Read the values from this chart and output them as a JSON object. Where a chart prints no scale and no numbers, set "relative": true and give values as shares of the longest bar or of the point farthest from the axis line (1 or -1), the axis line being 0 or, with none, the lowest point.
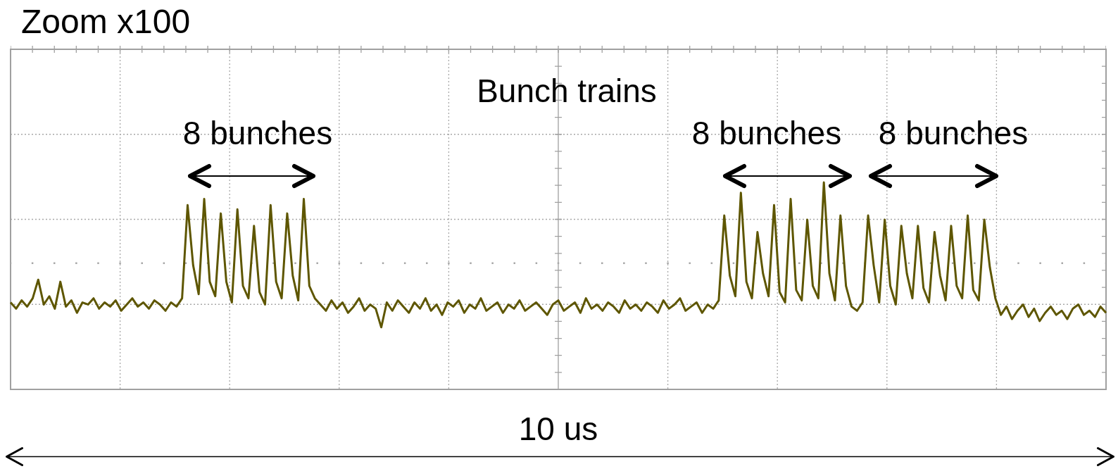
{
  "chart_data": {
    "type": "line",
    "title": "Zoom x100",
    "xlabel": "10 us",
    "relative": true,
    "grid": true,
    "annotations": [
      "Bunch trains",
      "8 bunches",
      "8 bunches",
      "8 bunches"
    ],
    "ref_lines": [
      {
        "axis": "y",
        "value": 0.61,
        "color": "#a8a8a8",
        "line_style": "dotted"
      }
    ],
    "categories": [
      null,
      null,
      null,
      null,
      null,
      null,
      null,
      null,
      null,
      null,
      null,
      null,
      null,
      null,
      null,
      null,
      null,
      null,
      null,
      null,
      null,
      null,
      null,
      null,
      null,
      null,
      null,
      null,
      null,
      null,
      null,
      null,
      null,
      null,
      null,
      null,
      null,
      null,
      null,
      null,
      null,
      null,
      null,
      null,
      null,
      null,
      null,
      null,
      null,
      null,
      null,
      null,
      null,
      null,
      null,
      null,
      null,
      null,
      null,
      null,
      null,
      null,
      null,
      null,
      null,
      null,
      null,
      null,
      null,
      null,
      null,
      null,
      null,
      null,
      null,
      null,
      null,
      null,
      null,
      null,
      null,
      null,
      null,
      null,
      null,
      null,
      null,
      null,
      null,
      null,
      null,
      null,
      null,
      null,
      null,
      null,
      null,
      null,
      null,
      null,
      null,
      null,
      null,
      null,
      null,
      null,
      null,
      null,
      null,
      null,
      null,
      null,
      null,
      null,
      null,
      null,
      null,
      null,
      null,
      null,
      null,
      null,
      null,
      null,
      null,
      null,
      null,
      null,
      null,
      null,
      null,
      null,
      null,
      null,
      null,
      null,
      null,
      null,
      null,
      null,
      null,
      null,
      null,
      null,
      null,
      null,
      null,
      null,
      null,
      null,
      null,
      null,
      null,
      null,
      null,
      null,
      null,
      null,
      null,
      null,
      null,
      null,
      null,
      null,
      null,
      null,
      null,
      null,
      null,
      null,
      null,
      null,
      null,
      null,
      null,
      null,
      null,
      null,
      null,
      null,
      null,
      null,
      null,
      null,
      null,
      null,
      null,
      null,
      null,
      null,
      null,
      null,
      null,
      null,
      null,
      null,
      null,
      null,
      null
    ],
    "series": [
      {
        "color": "#5e5600",
        "values": [
          0.42,
          0.39,
          0.43,
          0.4,
          0.44,
          0.53,
          0.41,
          0.45,
          0.39,
          0.52,
          0.4,
          0.43,
          0.37,
          0.42,
          0.41,
          0.44,
          0.39,
          0.42,
          0.4,
          0.43,
          0.38,
          0.41,
          0.44,
          0.4,
          0.42,
          0.39,
          0.43,
          0.41,
          0.38,
          0.42,
          0.4,
          0.44,
          0.89,
          0.6,
          0.46,
          0.92,
          0.52,
          0.45,
          0.85,
          0.52,
          0.42,
          0.87,
          0.5,
          0.44,
          0.79,
          0.47,
          0.41,
          0.89,
          0.52,
          0.44,
          0.85,
          0.55,
          0.43,
          0.92,
          0.5,
          0.44,
          0.41,
          0.38,
          0.43,
          0.39,
          0.42,
          0.37,
          0.4,
          0.44,
          0.38,
          0.41,
          0.39,
          0.3,
          0.42,
          0.38,
          0.43,
          0.4,
          0.37,
          0.42,
          0.39,
          0.44,
          0.38,
          0.41,
          0.36,
          0.42,
          0.4,
          0.43,
          0.37,
          0.41,
          0.39,
          0.44,
          0.38,
          0.4,
          0.42,
          0.37,
          0.41,
          0.39,
          0.43,
          0.38,
          0.4,
          0.42,
          0.39,
          0.36,
          0.41,
          0.43,
          0.38,
          0.4,
          0.42,
          0.37,
          0.44,
          0.39,
          0.41,
          0.38,
          0.42,
          0.4,
          0.37,
          0.43,
          0.39,
          0.41,
          0.38,
          0.42,
          0.4,
          0.37,
          0.43,
          0.39,
          0.41,
          0.44,
          0.38,
          0.4,
          0.42,
          0.37,
          0.41,
          0.39,
          0.43,
          0.84,
          0.55,
          0.45,
          0.95,
          0.52,
          0.44,
          0.76,
          0.56,
          0.45,
          0.89,
          0.47,
          0.42,
          0.92,
          0.48,
          0.43,
          0.82,
          0.5,
          0.44,
          1.0,
          0.56,
          0.43,
          0.84,
          0.5,
          0.4,
          0.38,
          0.42,
          0.84,
          0.6,
          0.42,
          0.82,
          0.5,
          0.41,
          0.79,
          0.56,
          0.44,
          0.79,
          0.49,
          0.42,
          0.76,
          0.55,
          0.43,
          0.79,
          0.5,
          0.44,
          0.84,
          0.48,
          0.43,
          0.82,
          0.59,
          0.44,
          0.36,
          0.4,
          0.34,
          0.38,
          0.41,
          0.35,
          0.39,
          0.33,
          0.37,
          0.4,
          0.36,
          0.38,
          0.34,
          0.39,
          0.41,
          0.36,
          0.38,
          0.35,
          0.4,
          0.37
        ]
      }
    ]
  }
}
